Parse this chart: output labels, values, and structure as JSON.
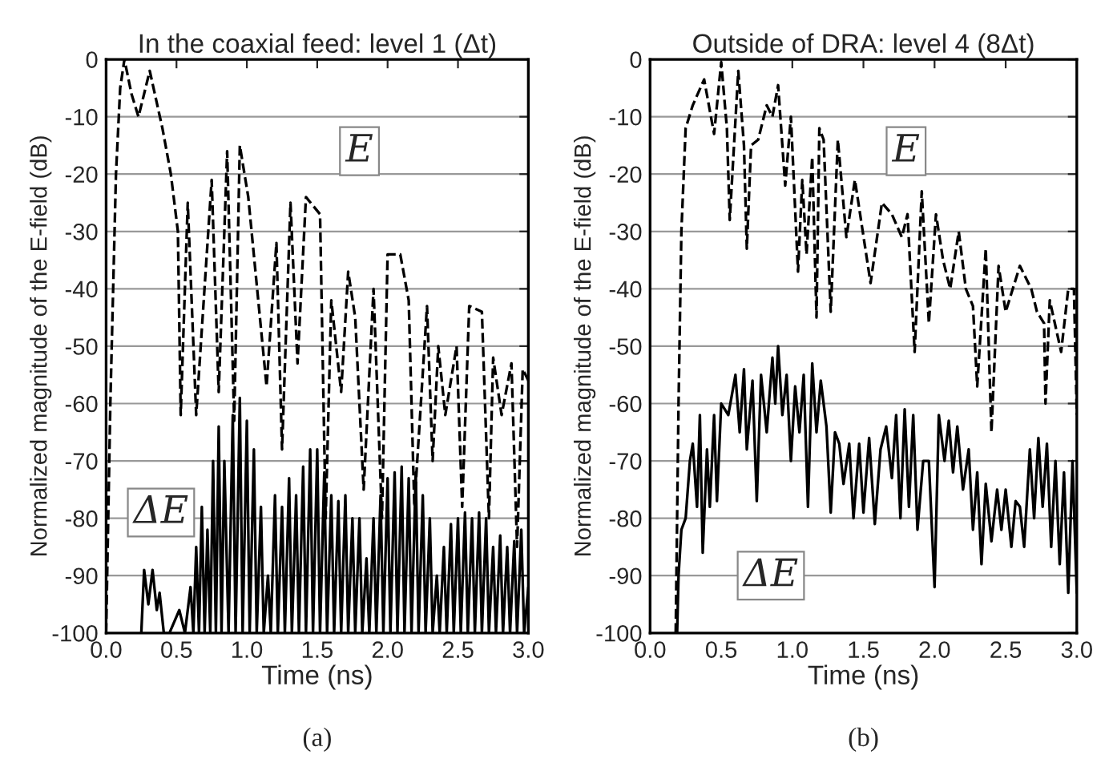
{
  "chart_data": [
    {
      "type": "line",
      "title": "In the coaxial feed: level 1 (Δt)",
      "xlabel": "Time (ns)",
      "ylabel": "Normalized magnitude of the E-field (dB)",
      "annotations": [
        "(a)"
      ],
      "xlim": [
        0,
        3
      ],
      "ylim": [
        -100,
        0
      ],
      "grid": "y",
      "xticks": [
        {
          "value": 0,
          "label": "0.0"
        },
        {
          "value": 0.5,
          "label": "0.5"
        },
        {
          "value": 1,
          "label": "1.0"
        },
        {
          "value": 1.5,
          "label": "1.5"
        },
        {
          "value": 2,
          "label": "2.0"
        },
        {
          "value": 2.5,
          "label": "2.5"
        },
        {
          "value": 3,
          "label": "3.0"
        }
      ],
      "yticks": [
        -100,
        -90,
        -80,
        -70,
        -60,
        -50,
        -40,
        -30,
        -20,
        -10,
        0
      ],
      "series": [
        {
          "name": "E",
          "color": "#000000",
          "line_style": "dashed",
          "x": [
            0.0,
            0.03,
            0.07,
            0.1,
            0.13,
            0.18,
            0.23,
            0.31,
            0.4,
            0.46,
            0.51,
            0.53,
            0.58,
            0.64,
            0.75,
            0.8,
            0.86,
            0.91,
            0.95,
            1.01,
            1.14,
            1.21,
            1.25,
            1.31,
            1.36,
            1.42,
            1.52,
            1.56,
            1.6,
            1.67,
            1.72,
            1.77,
            1.83,
            1.9,
            1.96,
            2.0,
            2.09,
            2.15,
            2.19,
            2.28,
            2.32,
            2.36,
            2.41,
            2.49,
            2.53,
            2.58,
            2.67,
            2.72,
            2.75,
            2.81,
            2.88,
            2.92,
            2.96,
            3.0
          ],
          "values": [
            -100,
            -60,
            -20,
            -5,
            0,
            -6,
            -10,
            -2,
            -12,
            -20,
            -30,
            -62,
            -25,
            -62,
            -21,
            -58,
            -16,
            -63,
            -15,
            -24,
            -57,
            -32,
            -68,
            -25,
            -53,
            -24,
            -27,
            -80,
            -42,
            -58,
            -37,
            -45,
            -75,
            -40,
            -80,
            -34,
            -34,
            -42,
            -78,
            -43,
            -70,
            -50,
            -62,
            -50,
            -78,
            -43,
            -44,
            -80,
            -52,
            -62,
            -53,
            -85,
            -54,
            -56
          ]
        },
        {
          "name": "ΔE",
          "color": "#000000",
          "line_style": "solid",
          "x": [
            0.25,
            0.27,
            0.3,
            0.33,
            0.36,
            0.38,
            0.41,
            0.45,
            0.52,
            0.56,
            0.6,
            0.62,
            0.64,
            0.66,
            0.68,
            0.7,
            0.72,
            0.74,
            0.76,
            0.78,
            0.8,
            0.82,
            0.84,
            0.87,
            0.9,
            0.92,
            0.95,
            0.97,
            1.0,
            1.02,
            1.05,
            1.07,
            1.1,
            1.12,
            1.15,
            1.17,
            1.2,
            1.22,
            1.25,
            1.27,
            1.3,
            1.32,
            1.35,
            1.37,
            1.4,
            1.42,
            1.45,
            1.47,
            1.5,
            1.52,
            1.55,
            1.57,
            1.6,
            1.62,
            1.65,
            1.67,
            1.7,
            1.72,
            1.75,
            1.77,
            1.8,
            1.82,
            1.85,
            1.87,
            1.9,
            1.92,
            1.95,
            1.97,
            2.0,
            2.02,
            2.05,
            2.07,
            2.1,
            2.12,
            2.15,
            2.17,
            2.2,
            2.22,
            2.25,
            2.27,
            2.3,
            2.32,
            2.35,
            2.37,
            2.4,
            2.42,
            2.45,
            2.47,
            2.5,
            2.52,
            2.55,
            2.57,
            2.6,
            2.62,
            2.65,
            2.67,
            2.7,
            2.72,
            2.75,
            2.77,
            2.8,
            2.82,
            2.85,
            2.87,
            2.9,
            2.92,
            2.95,
            2.97,
            3.0
          ],
          "values": [
            -100,
            -89,
            -95,
            -89,
            -96,
            -93,
            -100,
            -100,
            -96,
            -100,
            -92,
            -100,
            -85,
            -100,
            -78,
            -100,
            -82,
            -100,
            -70,
            -100,
            -64,
            -100,
            -70,
            -100,
            -62,
            -100,
            -59,
            -100,
            -63,
            -100,
            -68,
            -100,
            -78,
            -100,
            -90,
            -100,
            -76,
            -100,
            -78,
            -100,
            -73,
            -100,
            -76,
            -100,
            -71,
            -100,
            -68,
            -100,
            -68,
            -100,
            -72,
            -100,
            -76,
            -100,
            -77,
            -100,
            -76,
            -100,
            -80,
            -100,
            -80,
            -100,
            -87,
            -100,
            -80,
            -100,
            -76,
            -100,
            -73,
            -100,
            -72,
            -100,
            -71,
            -100,
            -73,
            -100,
            -72,
            -100,
            -76,
            -100,
            -80,
            -100,
            -90,
            -100,
            -85,
            -100,
            -81,
            -100,
            -80,
            -100,
            -79,
            -100,
            -80,
            -100,
            -79,
            -100,
            -80,
            -100,
            -85,
            -100,
            -83,
            -100,
            -85,
            -100,
            -84,
            -100,
            -82,
            -100,
            -92
          ]
        }
      ]
    },
    {
      "type": "line",
      "title": "Outside of DRA: level 4 (8Δt)",
      "xlabel": "Time (ns)",
      "ylabel": "Normalized magnitude of the E-field (dB)",
      "annotations": [
        "(b)"
      ],
      "xlim": [
        0,
        3
      ],
      "ylim": [
        -100,
        0
      ],
      "grid": "y",
      "xticks": [
        {
          "value": 0,
          "label": "0.0"
        },
        {
          "value": 0.5,
          "label": "0.5"
        },
        {
          "value": 1,
          "label": "1.0"
        },
        {
          "value": 1.5,
          "label": "1.5"
        },
        {
          "value": 2,
          "label": "2.0"
        },
        {
          "value": 2.5,
          "label": "2.5"
        },
        {
          "value": 3,
          "label": "3.0"
        }
      ],
      "yticks": [
        -100,
        -90,
        -80,
        -70,
        -60,
        -50,
        -40,
        -30,
        -20,
        -10,
        0
      ],
      "series": [
        {
          "name": "E",
          "color": "#000000",
          "line_style": "dashed",
          "x": [
            0.18,
            0.2,
            0.22,
            0.25,
            0.3,
            0.38,
            0.45,
            0.5,
            0.54,
            0.56,
            0.62,
            0.66,
            0.68,
            0.71,
            0.76,
            0.82,
            0.86,
            0.9,
            0.95,
            0.99,
            1.04,
            1.07,
            1.1,
            1.14,
            1.17,
            1.19,
            1.22,
            1.27,
            1.32,
            1.38,
            1.44,
            1.55,
            1.63,
            1.7,
            1.77,
            1.81,
            1.86,
            1.91,
            1.96,
            2.01,
            2.06,
            2.11,
            2.17,
            2.22,
            2.27,
            2.3,
            2.36,
            2.4,
            2.45,
            2.5,
            2.6,
            2.68,
            2.72,
            2.77,
            2.78,
            2.81,
            2.89,
            2.94,
            2.98,
            3.0
          ],
          "values": [
            -100,
            -60,
            -30,
            -12,
            -8,
            -3.5,
            -13,
            -0.5,
            -12,
            -28,
            -2,
            -15,
            -33,
            -15,
            -14,
            -8,
            -10,
            -4.5,
            -22,
            -10,
            -37,
            -21,
            -34,
            -17,
            -45,
            -12,
            -14,
            -44,
            -14,
            -31,
            -21,
            -39,
            -25,
            -27,
            -31,
            -27,
            -51,
            -23,
            -46,
            -27,
            -35,
            -40,
            -30,
            -40,
            -43,
            -57,
            -33,
            -65,
            -36,
            -44,
            -36,
            -40,
            -44,
            -46,
            -60,
            -42,
            -51,
            -40,
            -40,
            -62
          ]
        },
        {
          "name": "ΔE",
          "color": "#000000",
          "line_style": "solid",
          "x": [
            0.19,
            0.2,
            0.22,
            0.25,
            0.28,
            0.3,
            0.33,
            0.35,
            0.37,
            0.4,
            0.42,
            0.45,
            0.47,
            0.5,
            0.55,
            0.6,
            0.63,
            0.66,
            0.68,
            0.72,
            0.75,
            0.78,
            0.82,
            0.86,
            0.88,
            0.9,
            0.93,
            0.96,
            0.99,
            1.02,
            1.05,
            1.08,
            1.11,
            1.14,
            1.17,
            1.2,
            1.24,
            1.27,
            1.3,
            1.33,
            1.36,
            1.4,
            1.43,
            1.47,
            1.5,
            1.54,
            1.58,
            1.62,
            1.66,
            1.7,
            1.73,
            1.76,
            1.79,
            1.82,
            1.85,
            1.88,
            1.92,
            1.96,
            2.0,
            2.03,
            2.07,
            2.1,
            2.13,
            2.16,
            2.2,
            2.24,
            2.27,
            2.3,
            2.33,
            2.36,
            2.4,
            2.44,
            2.47,
            2.5,
            2.54,
            2.57,
            2.6,
            2.63,
            2.67,
            2.7,
            2.73,
            2.76,
            2.79,
            2.82,
            2.85,
            2.88,
            2.91,
            2.94,
            2.97,
            3.0
          ],
          "values": [
            -100,
            -90,
            -82,
            -80,
            -70,
            -67,
            -78,
            -62,
            -86,
            -68,
            -78,
            -62,
            -77,
            -60,
            -62,
            -55,
            -65,
            -54,
            -68,
            -56,
            -77,
            -55,
            -65,
            -52,
            -60,
            -50,
            -62,
            -55,
            -70,
            -57,
            -65,
            -55,
            -78,
            -53,
            -65,
            -56,
            -64,
            -79,
            -65,
            -67,
            -74,
            -67,
            -80,
            -67,
            -79,
            -66,
            -81,
            -68,
            -64,
            -73,
            -62,
            -80,
            -61,
            -78,
            -62,
            -82,
            -70,
            -70,
            -92,
            -62,
            -70,
            -63,
            -72,
            -64,
            -75,
            -68,
            -82,
            -72,
            -88,
            -74,
            -84,
            -75,
            -82,
            -75,
            -85,
            -77,
            -78,
            -85,
            -68,
            -80,
            -66,
            -78,
            -67,
            -85,
            -70,
            -88,
            -72,
            -93,
            -70,
            -93
          ]
        }
      ]
    }
  ]
}
